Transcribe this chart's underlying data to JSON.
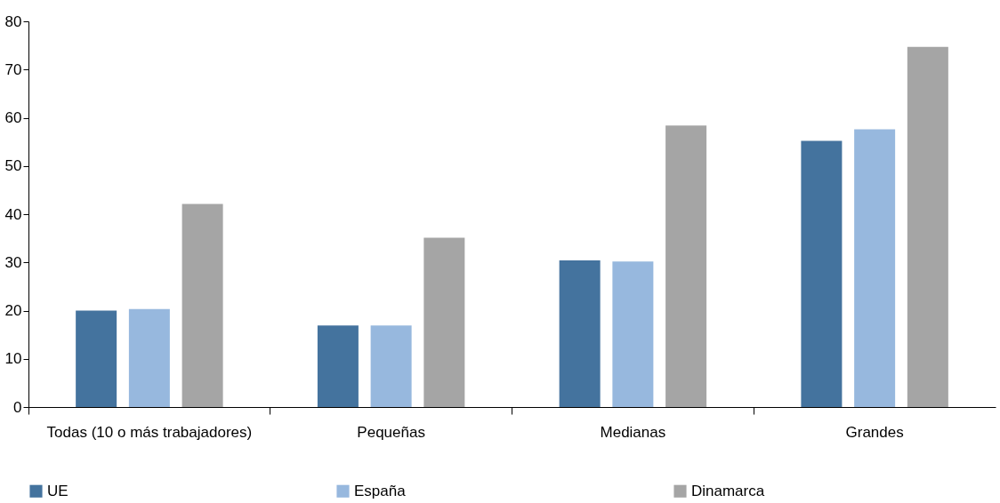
{
  "chart_data": {
    "type": "bar",
    "categories": [
      "Todas (10 o más trabajadores)",
      "Pequeñas",
      "Medianas",
      "Grandes"
    ],
    "series": [
      {
        "name": "UE",
        "color": "#44739e",
        "values": [
          20.0,
          16.9,
          30.4,
          55.2
        ]
      },
      {
        "name": "España",
        "color": "#97b8de",
        "values": [
          20.3,
          16.9,
          30.2,
          57.6
        ]
      },
      {
        "name": "Dinamarca",
        "color": "#a5a5a5",
        "values": [
          42.1,
          35.1,
          58.4,
          74.7
        ]
      }
    ],
    "ylim": [
      0,
      80
    ],
    "yticks": [
      0,
      10,
      20,
      30,
      40,
      50,
      60,
      70,
      80
    ],
    "grid": false,
    "legend": "bottom"
  }
}
